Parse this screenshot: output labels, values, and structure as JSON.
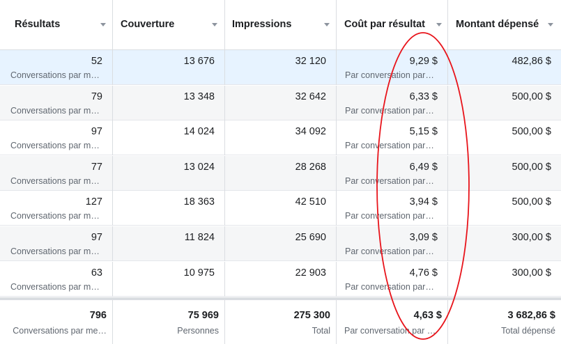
{
  "columns": [
    {
      "label": "Résultats"
    },
    {
      "label": "Couverture"
    },
    {
      "label": "Impressions"
    },
    {
      "label": "Coût par résultat"
    },
    {
      "label": "Montant dépensé"
    }
  ],
  "rows": [
    {
      "results": "52",
      "results_sub": "Conversations par m…",
      "reach": "13 676",
      "impressions": "32 120",
      "cost": "9,29 $",
      "cost_sub": "Par conversation par…",
      "spent": "482,86 $"
    },
    {
      "results": "79",
      "results_sub": "Conversations par m…",
      "reach": "13 348",
      "impressions": "32 642",
      "cost": "6,33 $",
      "cost_sub": "Par conversation par…",
      "spent": "500,00 $"
    },
    {
      "results": "97",
      "results_sub": "Conversations par m…",
      "reach": "14 024",
      "impressions": "34 092",
      "cost": "5,15 $",
      "cost_sub": "Par conversation par…",
      "spent": "500,00 $"
    },
    {
      "results": "77",
      "results_sub": "Conversations par m…",
      "reach": "13 024",
      "impressions": "28 268",
      "cost": "6,49 $",
      "cost_sub": "Par conversation par…",
      "spent": "500,00 $"
    },
    {
      "results": "127",
      "results_sub": "Conversations par m…",
      "reach": "18 363",
      "impressions": "42 510",
      "cost": "3,94 $",
      "cost_sub": "Par conversation par…",
      "spent": "500,00 $"
    },
    {
      "results": "97",
      "results_sub": "Conversations par m…",
      "reach": "11 824",
      "impressions": "25 690",
      "cost": "3,09 $",
      "cost_sub": "Par conversation par…",
      "spent": "300,00 $"
    },
    {
      "results": "63",
      "results_sub": "Conversations par m…",
      "reach": "10 975",
      "impressions": "22 903",
      "cost": "4,76 $",
      "cost_sub": "Par conversation par…",
      "spent": "300,00 $"
    }
  ],
  "totals": {
    "results": "796",
    "results_sub": "Conversations par me…",
    "reach": "75 969",
    "reach_sub": "Personnes",
    "impressions": "275 300",
    "impressions_sub": "Total",
    "cost": "4,63 $",
    "cost_sub": "Par conversation par …",
    "spent": "3 682,86 $",
    "spent_sub": "Total dépensé"
  },
  "annotation": {
    "shape": "ellipse",
    "color": "#e8141b"
  },
  "colors": {
    "selected_row": "#e7f3ff",
    "shaded_row": "#f5f6f7",
    "border": "#dadde1"
  }
}
